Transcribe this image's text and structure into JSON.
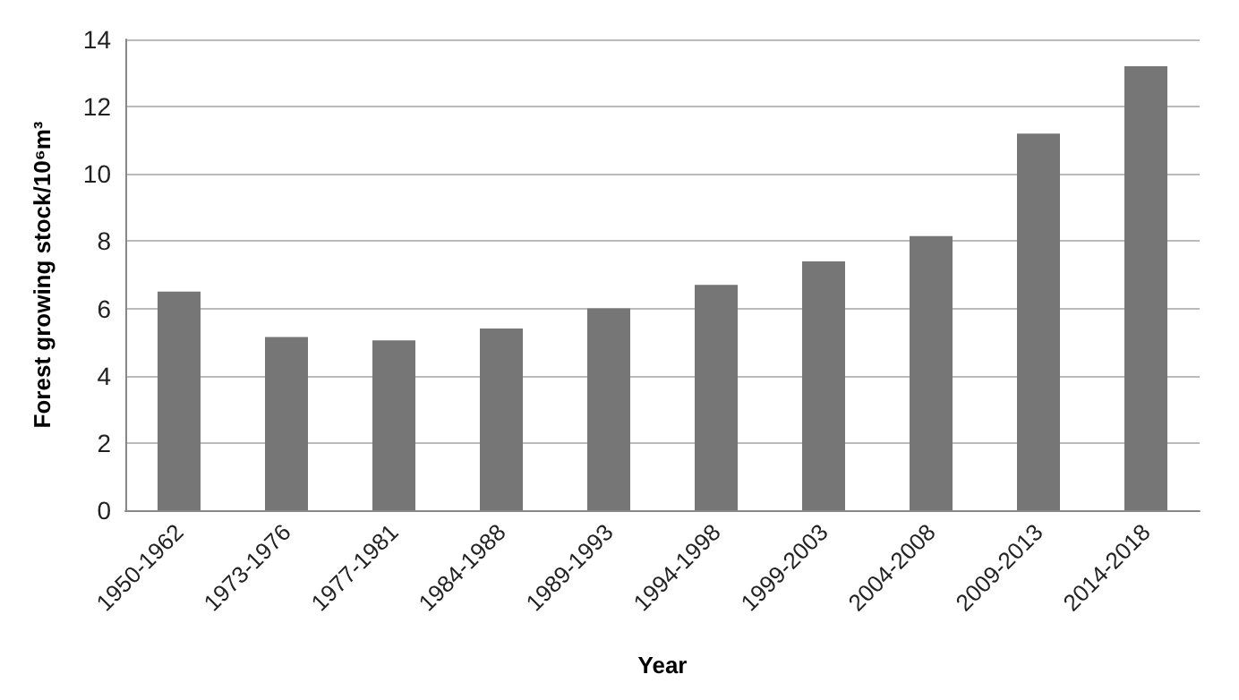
{
  "chart_data": {
    "type": "bar",
    "xlabel": "Year",
    "ylabel": "Forest growing stock/10⁶m³",
    "categories": [
      "1950-1962",
      "1973-1976",
      "1977-1981",
      "1984-1988",
      "1989-1993",
      "1994-1998",
      "1999-2003",
      "2004-2008",
      "2009-2013",
      "2014-2018"
    ],
    "values": [
      6.5,
      5.15,
      5.05,
      5.4,
      6.0,
      6.7,
      7.4,
      8.15,
      11.2,
      13.2
    ],
    "color": "#767676",
    "ylim": [
      0,
      14
    ],
    "yticks": [
      0,
      2,
      4,
      6,
      8,
      10,
      12,
      14
    ],
    "grid": "y"
  }
}
